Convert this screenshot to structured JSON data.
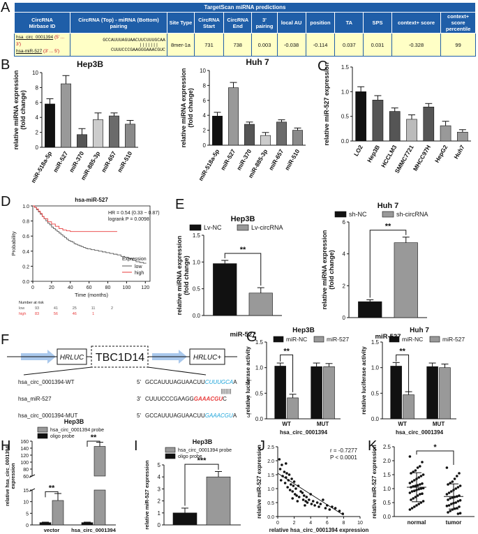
{
  "panels": {
    "A": "A",
    "B": "B",
    "C": "C",
    "D": "D",
    "E": "E",
    "F": "F",
    "G": "G",
    "H": "H",
    "I": "I",
    "J": "J",
    "K": "K"
  },
  "table": {
    "title": "TargetScan miRNA predictions",
    "headers": [
      "CircRNA\nMirbase ID",
      "CircRNA (Top) - miRNA (Bottom) pairing",
      "Site Type",
      "CircRNA Start",
      "CircRNA End",
      "3' pairing",
      "local AU",
      "position",
      "TA",
      "SPS",
      "context+ score",
      "context+ score percentile"
    ],
    "row": {
      "circ_id": "hsa_circ_0001394",
      "circ_dir": "(5' ... 3')",
      "mir_id": "hsa-miR-527",
      "mir_dir": "(3' ... 5')",
      "top_seq": "GCCAUUUAGUAACUUCUUUGCAA",
      "bars": "|||||||",
      "bottom_seq": "CUUUCCCGAAGGGAAACGUC",
      "site_type": "8mer-1a",
      "start": "731",
      "end": "738",
      "pairing3": "0.003",
      "local_au": "-0.038",
      "position": "-0.114",
      "ta": "0.037",
      "sps": "0.031",
      "context_score": "-0.328",
      "percentile": "99"
    }
  },
  "colors": {
    "black": "#111111",
    "dgray": "#555555",
    "mgray": "#999999",
    "lgray": "#cccccc",
    "red": "#e83b3b",
    "blue": "#1aa3d9",
    "darkred": "#c0001a",
    "tableblue": "#1f5ea8",
    "tableyellow": "#ffffc6"
  },
  "chart_data": [
    {
      "id": "B1",
      "type": "bar",
      "title": "Hep3B",
      "ylabel": "relative miRNA expression\n(fold change)",
      "categories": [
        "miR-518a-5p",
        "miR-527",
        "miR-370",
        "miR-885-3p",
        "miR-657",
        "miR-510"
      ],
      "values": [
        5.8,
        8.5,
        1.7,
        3.7,
        4.2,
        3.1
      ],
      "errors": [
        0.7,
        1.1,
        0.8,
        0.9,
        0.4,
        0.5
      ],
      "ylim": [
        0,
        10
      ],
      "yticks": [
        "0",
        "2",
        "4",
        "6",
        "8",
        "10"
      ]
    },
    {
      "id": "B2",
      "type": "bar",
      "title": "Huh 7",
      "ylabel": "relative miRNA expression\n(fold change)",
      "categories": [
        "miR-518a-5p",
        "miR-527",
        "miR-370",
        "miR-885-3p",
        "miR-657",
        "miR-510"
      ],
      "values": [
        3.9,
        7.7,
        2.8,
        1.3,
        3.1,
        2.0
      ],
      "errors": [
        0.5,
        0.7,
        0.3,
        0.4,
        0.3,
        0.3
      ],
      "ylim": [
        0,
        10
      ],
      "yticks": [
        "0",
        "2",
        "4",
        "6",
        "8",
        "10"
      ]
    },
    {
      "id": "C",
      "type": "bar",
      "title": "",
      "ylabel": "relative miR-527 expression",
      "categories": [
        "LO2",
        "Hep3B",
        "HCCLM3",
        "SMMC7721",
        "MHCC97H",
        "HepG2",
        "Huh7"
      ],
      "values": [
        1.0,
        0.83,
        0.6,
        0.44,
        0.69,
        0.31,
        0.18
      ],
      "errors": [
        0.1,
        0.09,
        0.07,
        0.09,
        0.07,
        0.09,
        0.05
      ],
      "ylim": [
        0,
        1.5
      ],
      "yticks": [
        "0.0",
        "0.5",
        "1.0",
        "1.5"
      ]
    },
    {
      "id": "D",
      "type": "line",
      "title": "hsa-miR-527",
      "xlabel": "Time (months)",
      "ylabel": "Probability",
      "annotation": [
        "HR = 0.54 (0.33 − 0.87)",
        "logrank P = 0.0098"
      ],
      "legend_title": "Expression",
      "legend": [
        "low",
        "high"
      ],
      "xticks": [
        "0",
        "20",
        "40",
        "60",
        "80",
        "100",
        "120"
      ],
      "yticks": [
        "0.0",
        "0.2",
        "0.4",
        "0.6",
        "0.8",
        "1.0"
      ],
      "xlim": [
        0,
        125
      ],
      "ylim": [
        0,
        1
      ],
      "series": [
        {
          "name": "low",
          "x": [
            0,
            2,
            4,
            6,
            8,
            10,
            12,
            14,
            16,
            18,
            20,
            22,
            24,
            26,
            28,
            30,
            32,
            34,
            36,
            38,
            40,
            42,
            44,
            46,
            48,
            50,
            52,
            54,
            56,
            58,
            60,
            62,
            64,
            66,
            70,
            74,
            78,
            82,
            86,
            90,
            94,
            98,
            102,
            106,
            110,
            114,
            118,
            121
          ],
          "y": [
            1,
            0.98,
            0.95,
            0.92,
            0.89,
            0.86,
            0.83,
            0.8,
            0.77,
            0.75,
            0.72,
            0.7,
            0.68,
            0.66,
            0.64,
            0.62,
            0.6,
            0.58,
            0.56,
            0.54,
            0.53,
            0.52,
            0.5,
            0.49,
            0.48,
            0.47,
            0.46,
            0.45,
            0.44,
            0.43,
            0.43,
            0.42,
            0.42,
            0.41,
            0.4,
            0.39,
            0.38,
            0.37,
            0.36,
            0.35,
            0.33,
            0.32,
            0.3,
            0.28,
            0.26,
            0.25,
            0.24,
            0.24
          ]
        },
        {
          "name": "high",
          "x": [
            0,
            2,
            4,
            6,
            8,
            10,
            12,
            16,
            20,
            24,
            28,
            32,
            36,
            40,
            44,
            50,
            60,
            70,
            80,
            90
          ],
          "y": [
            1,
            0.98,
            0.96,
            0.93,
            0.9,
            0.86,
            0.83,
            0.79,
            0.76,
            0.73,
            0.7,
            0.68,
            0.67,
            0.66,
            0.66,
            0.66,
            0.66,
            0.66,
            0.66,
            0.66
          ]
        }
      ],
      "risk_label": "Number at risk",
      "risk_rows": [
        {
          "name": "low",
          "values": [
            "93",
            "41",
            "25",
            "11",
            "2"
          ]
        },
        {
          "name": "high",
          "values": [
            "83",
            "56",
            "46",
            "1",
            ""
          ]
        }
      ]
    },
    {
      "id": "E1",
      "type": "bar",
      "title": "Hep3B",
      "xlabel": "miR-527",
      "ylabel": "relative miRNA expression\n(fold change)",
      "legend": [
        "Lv-NC",
        "Lv-circRNA"
      ],
      "values": [
        0.97,
        0.42
      ],
      "errors": [
        0.06,
        0.1
      ],
      "ylim": [
        0,
        1.5
      ],
      "yticks": [
        "0.0",
        "0.5",
        "1.0",
        "1.5"
      ],
      "significance": "**"
    },
    {
      "id": "E2",
      "type": "bar",
      "title": "Huh 7",
      "xlabel": "miR-527",
      "ylabel": "relative miRNA expression\n(fold change)",
      "legend": [
        "sh-NC",
        "sh-circRNA"
      ],
      "values": [
        1.0,
        4.7
      ],
      "errors": [
        0.12,
        0.35
      ],
      "ylim": [
        0,
        6
      ],
      "yticks": [
        "0",
        "2",
        "4",
        "6"
      ],
      "significance": "**"
    },
    {
      "id": "G1",
      "type": "bar",
      "title": "Hep3B",
      "xlabel": "hsa_circ_0001394",
      "ylabel": "relative luciferase activity",
      "legend": [
        "miR-NC",
        "miR-527"
      ],
      "categories": [
        "WT",
        "MUT"
      ],
      "series": [
        {
          "name": "miR-NC",
          "values": [
            1.03,
            1.02
          ],
          "errors": [
            0.06,
            0.07
          ]
        },
        {
          "name": "miR-527",
          "values": [
            0.41,
            1.02
          ],
          "errors": [
            0.07,
            0.06
          ]
        }
      ],
      "ylim": [
        0,
        1.5
      ],
      "yticks": [
        "0.0",
        "0.5",
        "1.0",
        "1.5"
      ],
      "significance": "**"
    },
    {
      "id": "G2",
      "type": "bar",
      "title": "Huh 7",
      "xlabel": "hsa_circ_0001394",
      "ylabel": "relative luciferase activity",
      "legend": [
        "miR-NC",
        "miR-527"
      ],
      "categories": [
        "WT",
        "MUT"
      ],
      "series": [
        {
          "name": "miR-NC",
          "values": [
            1.03,
            1.02
          ],
          "errors": [
            0.07,
            0.07
          ]
        },
        {
          "name": "miR-527",
          "values": [
            0.47,
            1.0
          ],
          "errors": [
            0.06,
            0.07
          ]
        }
      ],
      "ylim": [
        0,
        1.5
      ],
      "yticks": [
        "0.0",
        "0.5",
        "1.0",
        "1.5"
      ],
      "significance": "**"
    },
    {
      "id": "H",
      "type": "bar",
      "title": "Hep3B",
      "ylabel": "relative hsa_circ_0001394\nexpression",
      "legend": [
        "hsa_circ_0001394 probe",
        "oligo probe"
      ],
      "categories": [
        "vector",
        "hsa_circ_0001394"
      ],
      "series": [
        {
          "name": "oligo probe",
          "values": [
            1.0,
            1.0
          ],
          "errors": [
            0.2,
            0.2
          ]
        },
        {
          "name": "hsa_circ_0001394 probe",
          "values": [
            10.5,
            145
          ],
          "errors": [
            3,
            12
          ]
        }
      ],
      "broken_axis": [
        15,
        60
      ],
      "yticks": [
        "0",
        "5",
        "10",
        "15",
        "60",
        "80",
        "100",
        "120",
        "140",
        "160"
      ],
      "significance": [
        "**",
        "**"
      ]
    },
    {
      "id": "I",
      "type": "bar",
      "title": "Hep3B",
      "ylabel": "relative miR-527 expression",
      "legend": [
        "hsa_circ_0001394 probe",
        "oligo probe"
      ],
      "values": [
        1.0,
        4.0
      ],
      "errors": [
        0.4,
        0.45
      ],
      "ylim": [
        0,
        5
      ],
      "yticks": [
        "0",
        "1",
        "2",
        "3",
        "4",
        "5"
      ],
      "significance": "***"
    },
    {
      "id": "J",
      "type": "scatter",
      "xlabel": "relative hsa_circ_0001394 expression",
      "ylabel": "relative miR-527 expression",
      "annotation": [
        "r = -0.7277",
        "P < 0.0001"
      ],
      "xlim": [
        0,
        10
      ],
      "ylim": [
        0,
        2.5
      ],
      "xticks": [
        "0",
        "2",
        "4",
        "6",
        "8",
        "10"
      ],
      "yticks": [
        "0.0",
        "0.5",
        "1.0",
        "1.5",
        "2.0",
        "2.5"
      ],
      "x": [
        0.2,
        0.3,
        0.5,
        0.6,
        0.8,
        0.9,
        1.0,
        1.1,
        1.2,
        1.3,
        1.4,
        1.5,
        1.6,
        1.7,
        1.8,
        1.9,
        2.0,
        2.1,
        2.2,
        2.3,
        2.5,
        2.6,
        2.8,
        3.0,
        3.1,
        3.2,
        3.4,
        3.5,
        3.6,
        3.8,
        4.0,
        4.1,
        4.3,
        4.5,
        4.8,
        5.0,
        5.2,
        5.5,
        5.8,
        6.0,
        6.3,
        6.6,
        7.0,
        7.5,
        7.9,
        1.0,
        0.4,
        1.8,
        2.4,
        3.3
      ],
      "y": [
        2.05,
        1.7,
        1.85,
        1.45,
        1.6,
        1.2,
        1.4,
        1.55,
        1.05,
        1.3,
        1.5,
        0.95,
        1.15,
        1.35,
        0.9,
        1.1,
        1.25,
        0.8,
        1.0,
        0.75,
        1.1,
        0.7,
        0.9,
        0.85,
        0.6,
        0.75,
        0.55,
        0.7,
        0.5,
        0.6,
        0.8,
        0.45,
        0.55,
        0.4,
        0.5,
        0.35,
        0.45,
        0.6,
        0.3,
        0.4,
        0.25,
        0.35,
        0.3,
        0.2,
        0.1,
        1.9,
        1.3,
        0.65,
        0.55,
        0.4
      ],
      "fit": {
        "x": [
          0,
          8
        ],
        "y": [
          1.55,
          0.05
        ]
      }
    },
    {
      "id": "K",
      "type": "scatter",
      "ylabel": "relative miR-527 expression",
      "categories": [
        "normal",
        "tumor"
      ],
      "means": [
        1.05,
        0.72
      ],
      "sds": [
        0.52,
        0.45
      ],
      "ylim": [
        0,
        2.5
      ],
      "yticks": [
        "0.0",
        "0.5",
        "1.0",
        "1.5",
        "2.0",
        "2.5"
      ],
      "significance": "*",
      "normal": [
        2.15,
        1.95,
        1.8,
        1.75,
        1.65,
        1.6,
        1.55,
        1.5,
        1.45,
        1.4,
        1.35,
        1.3,
        1.25,
        1.2,
        1.18,
        1.15,
        1.12,
        1.1,
        1.08,
        1.05,
        1.02,
        1.0,
        0.98,
        0.95,
        0.92,
        0.9,
        0.85,
        0.82,
        0.8,
        0.75,
        0.7,
        0.65,
        0.6,
        0.55,
        0.5,
        0.45,
        0.4,
        0.35,
        0.3,
        0.25
      ],
      "tumor": [
        1.75,
        1.55,
        1.45,
        1.35,
        1.25,
        1.2,
        1.15,
        1.1,
        1.05,
        1.0,
        0.95,
        0.9,
        0.85,
        0.8,
        0.75,
        0.72,
        0.7,
        0.68,
        0.65,
        0.6,
        0.58,
        0.55,
        0.5,
        0.48,
        0.45,
        0.4,
        0.38,
        0.35,
        0.3,
        0.28,
        0.25,
        0.2,
        0.15,
        0.12,
        0.1
      ]
    }
  ],
  "panelF": {
    "gene": "TBC1D14",
    "left_box": "HRLUC",
    "right_box": "HRLUC+",
    "rows": [
      {
        "name": "hsa_circ_0001394-WT",
        "p5": "5'",
        "seq": "GCCAUUUAGUAACUU",
        "seed": "CUUUGCA",
        "tail": "A",
        "p3": "3'"
      },
      {
        "name": "hsa_miR-527",
        "p5": "3'",
        "seq": "CUUUCCCGAAGG",
        "seed": "GAAACGU",
        "tail": "C",
        "p3": "5'"
      },
      {
        "name": "hsa_circ_0001394-MUT",
        "p5": "5'",
        "seq": "GCCAUUUAGUAACUU",
        "seed": "GAAACGU",
        "tail": "A",
        "p3": "3'"
      }
    ],
    "bars": "|||||||"
  }
}
